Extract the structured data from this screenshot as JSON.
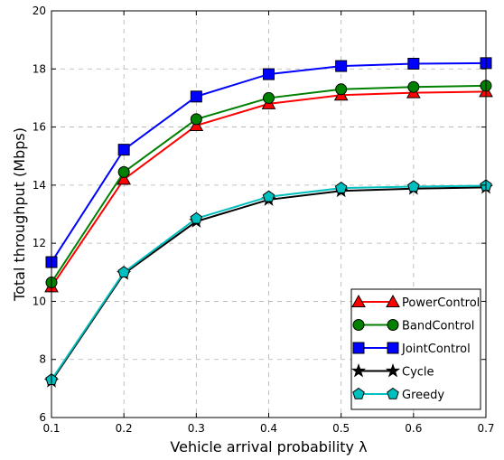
{
  "chart_data": {
    "type": "line",
    "xlabel": "Vehicle arrival probability λ",
    "ylabel": "Total throughput (Mbps)",
    "xlim": [
      0.1,
      0.7
    ],
    "ylim": [
      6,
      20
    ],
    "x_ticks": [
      "0.1",
      "0.2",
      "0.3",
      "0.4",
      "0.5",
      "0.6",
      "0.7"
    ],
    "y_ticks": [
      "6",
      "8",
      "10",
      "12",
      "14",
      "16",
      "18",
      "20"
    ],
    "grid": true,
    "grid_style": "dashed",
    "legend_position": "lower-right",
    "x": [
      0.1,
      0.2,
      0.3,
      0.4,
      0.5,
      0.6,
      0.7
    ],
    "series": [
      {
        "name": "PowerControl",
        "color": "#ff0000",
        "marker": "triangle",
        "values": [
          10.5,
          14.2,
          16.05,
          16.8,
          17.1,
          17.18,
          17.22
        ]
      },
      {
        "name": "BandControl",
        "color": "#008000",
        "marker": "circle",
        "values": [
          10.65,
          14.45,
          16.27,
          17.0,
          17.3,
          17.38,
          17.42
        ]
      },
      {
        "name": "JointControl",
        "color": "#0000ff",
        "marker": "square",
        "values": [
          11.35,
          15.22,
          17.05,
          17.82,
          18.1,
          18.18,
          18.2
        ]
      },
      {
        "name": "Cycle",
        "color": "#000000",
        "marker": "star",
        "values": [
          7.25,
          10.95,
          12.75,
          13.5,
          13.8,
          13.88,
          13.92
        ]
      },
      {
        "name": "Greedy",
        "color": "#00bfbf",
        "marker": "pentagon",
        "values": [
          7.3,
          11.0,
          12.85,
          13.6,
          13.9,
          13.95,
          13.98
        ]
      }
    ]
  }
}
